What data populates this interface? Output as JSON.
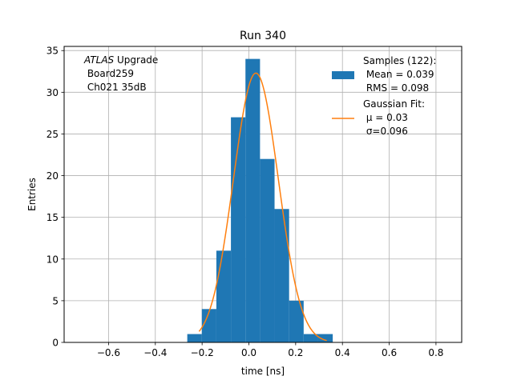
{
  "chart_data": {
    "type": "bar",
    "title": "Run 340",
    "xlabel": "time [ns]",
    "ylabel": "Entries",
    "xlim": [
      -0.79,
      0.91
    ],
    "ylim": [
      0,
      35.5
    ],
    "xticks": [
      -0.6,
      -0.4,
      -0.2,
      0.0,
      0.2,
      0.4,
      0.6,
      0.8
    ],
    "xtick_labels": [
      "−0.6",
      "−0.4",
      "−0.2",
      "0.0",
      "0.2",
      "0.4",
      "0.6",
      "0.8"
    ],
    "yticks": [
      0,
      5,
      10,
      15,
      20,
      25,
      30,
      35
    ],
    "ytick_labels": [
      "0",
      "5",
      "10",
      "15",
      "20",
      "25",
      "30",
      "35"
    ],
    "grid": true,
    "histogram": {
      "name": "Samples",
      "color": "#1f77b4",
      "bin_edges": [
        -0.2634,
        -0.2012,
        -0.139,
        -0.0768,
        -0.0146,
        0.0476,
        0.1098,
        0.172,
        0.2342,
        0.2964,
        0.3586
      ],
      "counts": [
        1,
        4,
        11,
        27,
        34,
        22,
        16,
        5,
        1,
        1
      ]
    },
    "fit": {
      "name": "Gaussian Fit",
      "color": "#ff7f0e",
      "mu": 0.03,
      "sigma": 0.096,
      "amplitude": 32.3,
      "x_range": [
        -0.213,
        0.333
      ]
    },
    "legend": {
      "position": "top-right",
      "entries": [
        {
          "label_lines": [
            "Samples (122):",
            " Mean = 0.039",
            " RMS = 0.098"
          ],
          "color": "#1f77b4",
          "kind": "patch"
        },
        {
          "label_lines": [
            "Gaussian Fit:",
            " μ = 0.03",
            " σ=0.096"
          ],
          "color": "#ff7f0e",
          "kind": "line"
        }
      ]
    },
    "annotation": {
      "italic_prefix": "ATLAS",
      "first_line_rest": " Upgrade",
      "lines": [
        " Board259",
        " Ch021 35dB"
      ]
    }
  }
}
